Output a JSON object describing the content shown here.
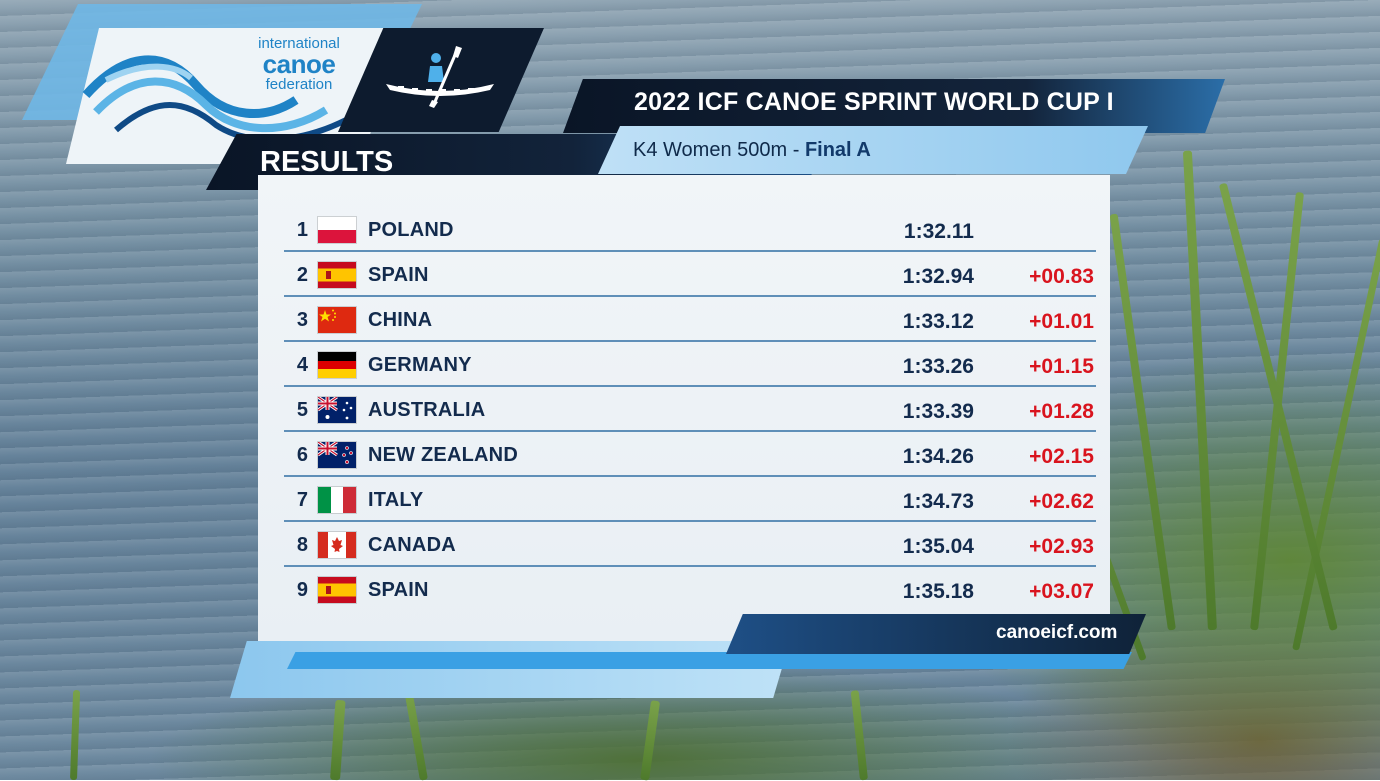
{
  "header": {
    "logo_line1": "international",
    "logo_line2": "canoe",
    "logo_line3": "federation",
    "section_label": "RESULTS",
    "event_title": "2022 ICF CANOE SPRINT WORLD CUP I",
    "race_name": "K4 Women 500m",
    "race_separator": " - ",
    "race_phase": "Final A"
  },
  "results": [
    {
      "pos": "1",
      "country": "POLAND",
      "flag": "poland-flag",
      "time": "1:32.11",
      "diff": ""
    },
    {
      "pos": "2",
      "country": "SPAIN",
      "flag": "spain-flag",
      "time": "1:32.94",
      "diff": "+00.83"
    },
    {
      "pos": "3",
      "country": "CHINA",
      "flag": "china-flag",
      "time": "1:33.12",
      "diff": "+01.01"
    },
    {
      "pos": "4",
      "country": "GERMANY",
      "flag": "germany-flag",
      "time": "1:33.26",
      "diff": "+01.15"
    },
    {
      "pos": "5",
      "country": "AUSTRALIA",
      "flag": "australia-flag",
      "time": "1:33.39",
      "diff": "+01.28"
    },
    {
      "pos": "6",
      "country": "NEW ZEALAND",
      "flag": "new-zealand-flag",
      "time": "1:34.26",
      "diff": "+02.15"
    },
    {
      "pos": "7",
      "country": "ITALY",
      "flag": "italy-flag",
      "time": "1:34.73",
      "diff": "+02.62"
    },
    {
      "pos": "8",
      "country": "CANADA",
      "flag": "canada-flag",
      "time": "1:35.04",
      "diff": "+02.93"
    },
    {
      "pos": "9",
      "country": "SPAIN",
      "flag": "spain-flag",
      "time": "1:35.18",
      "diff": "+03.07"
    }
  ],
  "footer": {
    "website": "canoeicf.com"
  },
  "colors": {
    "navy": "#0d1b2e",
    "accent_blue": "#3aa0e4",
    "light_blue": "#8fc8ee",
    "text_dark": "#132b4d",
    "diff_red": "#d9141e"
  }
}
